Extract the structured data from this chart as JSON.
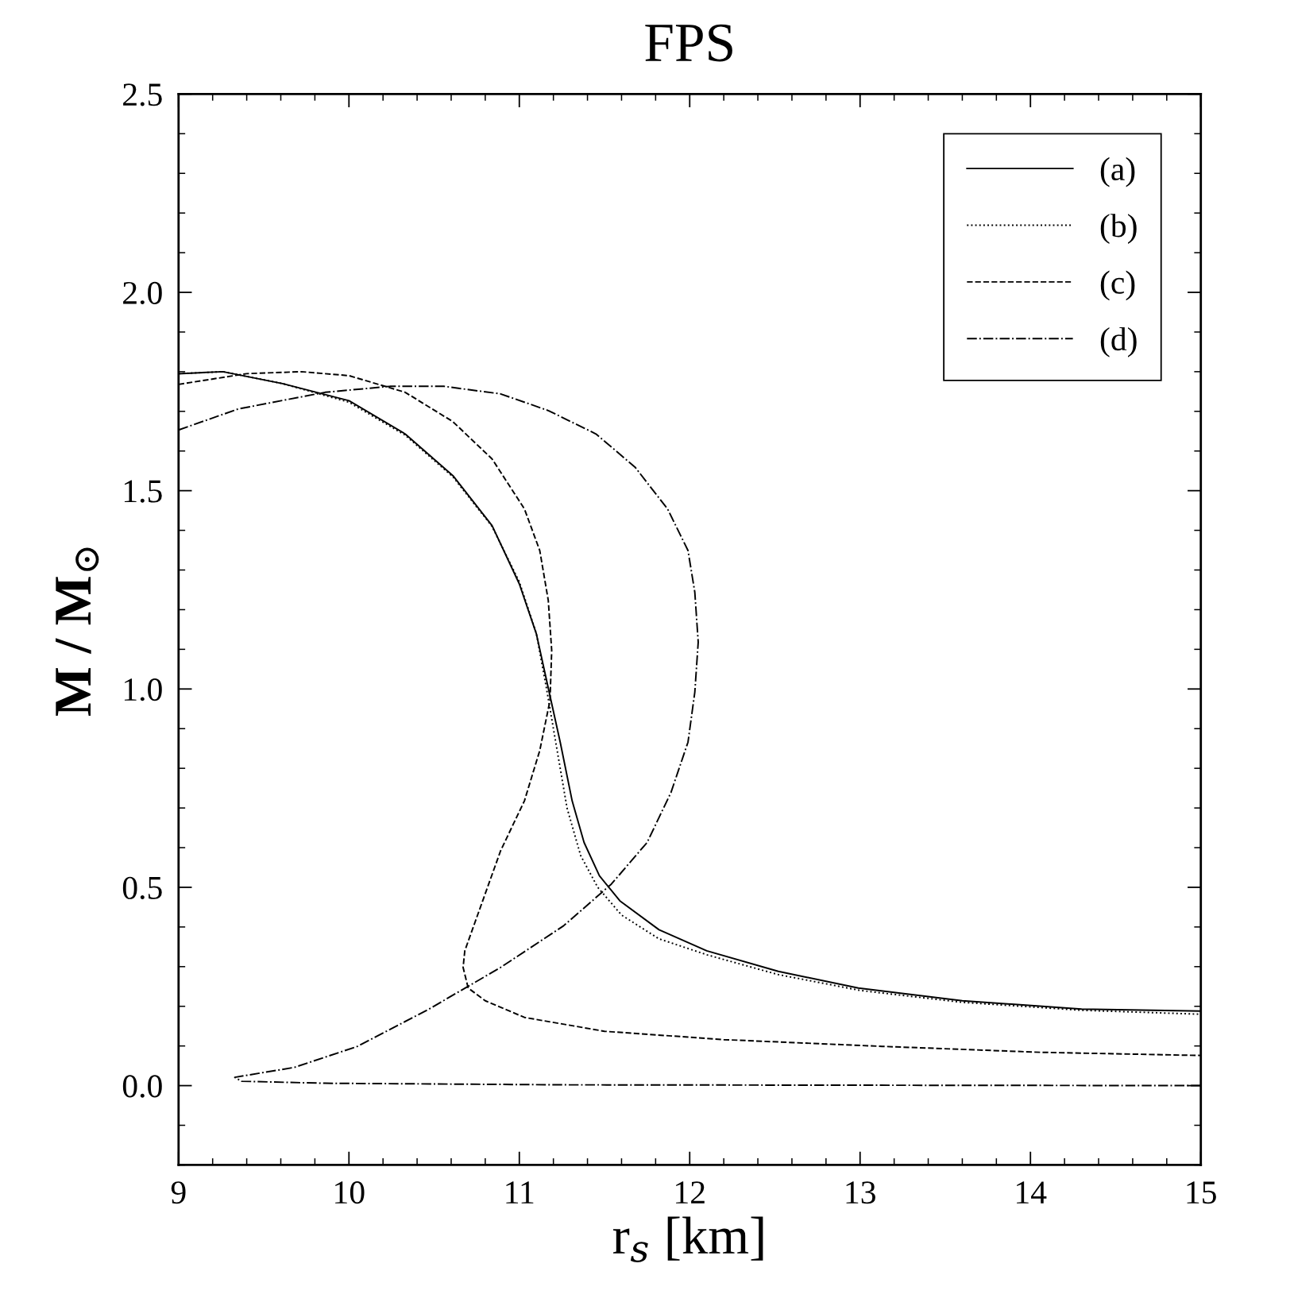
{
  "chart_data": {
    "type": "line",
    "title": "FPS",
    "xlabel": "r$_{s}$ [km]",
    "ylabel": "M / M$_{⊙}$",
    "xlim": [
      9,
      15
    ],
    "xticks": [
      9,
      10,
      11,
      12,
      13,
      14,
      15
    ],
    "ylim": [
      -0.2,
      2.5
    ],
    "yticks": [
      {
        "value": 0,
        "label": "0.0"
      },
      0.5,
      {
        "value": 1,
        "label": "1.0"
      },
      1.5,
      {
        "value": 2,
        "label": "2.0"
      },
      2.5
    ],
    "grid": false,
    "legend": "top right",
    "marker": "none",
    "series": [
      {
        "name": "(a)",
        "color": "#000000",
        "line_style": "solid",
        "x": [
          9.0,
          9.26,
          9.61,
          10.0,
          10.33,
          10.61,
          10.84,
          11.0,
          11.1,
          11.17,
          11.24,
          11.31,
          11.38,
          11.47,
          11.59,
          11.82,
          12.1,
          12.52,
          12.99,
          13.6,
          14.3,
          15.0
        ],
        "values": [
          1.795,
          1.8,
          1.77,
          1.727,
          1.643,
          1.538,
          1.412,
          1.265,
          1.139,
          1.002,
          0.866,
          0.718,
          0.613,
          0.529,
          0.466,
          0.393,
          0.34,
          0.288,
          0.246,
          0.214,
          0.193,
          0.188
        ]
      },
      {
        "name": "(b)",
        "color": "#000000",
        "line_style": "dotted",
        "x": [
          9.0,
          9.26,
          9.61,
          10.0,
          10.33,
          10.61,
          10.84,
          11.0,
          11.1,
          11.16,
          11.22,
          11.28,
          11.36,
          11.46,
          11.6,
          11.82,
          12.1,
          12.52,
          13.0,
          13.6,
          14.3,
          15.0
        ],
        "values": [
          1.795,
          1.8,
          1.77,
          1.723,
          1.64,
          1.535,
          1.41,
          1.27,
          1.14,
          1.0,
          0.85,
          0.7,
          0.58,
          0.5,
          0.43,
          0.37,
          0.33,
          0.28,
          0.24,
          0.21,
          0.19,
          0.18
        ]
      },
      {
        "name": "(c)",
        "color": "#000000",
        "line_style": "dashed",
        "x": [
          9.0,
          9.4,
          9.72,
          10.0,
          10.33,
          10.61,
          10.84,
          11.03,
          11.12,
          11.17,
          11.19,
          11.18,
          11.12,
          11.03,
          10.89,
          10.75,
          10.68,
          10.67,
          10.7,
          10.8,
          11.03,
          11.5,
          12.2,
          13.13,
          14.06,
          15.0
        ],
        "values": [
          1.768,
          1.795,
          1.8,
          1.79,
          1.748,
          1.674,
          1.58,
          1.454,
          1.349,
          1.223,
          1.097,
          0.971,
          0.845,
          0.718,
          0.592,
          0.424,
          0.34,
          0.298,
          0.246,
          0.214,
          0.172,
          0.137,
          0.116,
          0.099,
          0.084,
          0.076
        ]
      },
      {
        "name": "(d)",
        "color": "#000000",
        "line_style": "dashdot",
        "x": [
          9.0,
          9.35,
          9.86,
          10.24,
          10.56,
          10.89,
          11.17,
          11.45,
          11.68,
          11.87,
          11.99,
          12.03,
          12.05,
          12.03,
          11.99,
          11.89,
          11.75,
          11.54,
          11.26,
          10.89,
          10.47,
          10.05,
          9.68,
          9.33,
          9.37,
          9.86,
          11.26,
          15.0
        ],
        "values": [
          1.653,
          1.706,
          1.748,
          1.763,
          1.763,
          1.744,
          1.702,
          1.643,
          1.559,
          1.454,
          1.349,
          1.244,
          1.118,
          0.992,
          0.866,
          0.739,
          0.613,
          0.508,
          0.403,
          0.298,
          0.193,
          0.099,
          0.046,
          0.021,
          0.011,
          0.006,
          0.002,
          0.0
        ]
      }
    ]
  }
}
